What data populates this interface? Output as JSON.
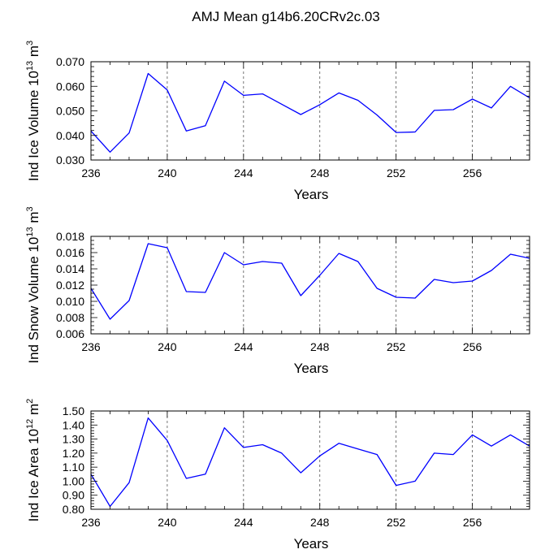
{
  "title": "AMJ Mean g14b6.20CRv2c.03",
  "line_color": "#0000ff",
  "chart_data": [
    {
      "type": "line",
      "ylabel": {
        "prefix": "Ind Ice Volume 10",
        "exp": "13",
        "mid": " m",
        "unit_exp": "3"
      },
      "xlabel": "Years",
      "xlim": [
        236,
        259
      ],
      "ylim": [
        0.03,
        0.07
      ],
      "xticks": [
        236,
        240,
        244,
        248,
        252,
        256
      ],
      "xtick_labels": [
        "236",
        "240",
        "244",
        "248",
        "252",
        "256"
      ],
      "yticks": [
        0.03,
        0.04,
        0.05,
        0.06,
        0.07
      ],
      "ytick_labels": [
        "0.030",
        "0.040",
        "0.050",
        "0.060",
        "0.070"
      ],
      "yminor_step": 0.002,
      "grid_x": [
        240,
        244,
        248,
        252,
        256
      ],
      "x": [
        236,
        237,
        238,
        239,
        240,
        241,
        242,
        243,
        244,
        245,
        246,
        247,
        248,
        249,
        250,
        251,
        252,
        253,
        254,
        255,
        256,
        257,
        258,
        259
      ],
      "values": [
        0.0418,
        0.0332,
        0.041,
        0.0652,
        0.0585,
        0.0418,
        0.044,
        0.0621,
        0.0563,
        0.0569,
        0.0527,
        0.0485,
        0.0525,
        0.0573,
        0.0543,
        0.0483,
        0.0412,
        0.0414,
        0.0502,
        0.0505,
        0.0548,
        0.0512,
        0.06,
        0.0553
      ]
    },
    {
      "type": "line",
      "ylabel": {
        "prefix": "Ind Snow Volume 10",
        "exp": "13",
        "mid": " m",
        "unit_exp": "3"
      },
      "xlabel": "Years",
      "xlim": [
        236,
        259
      ],
      "ylim": [
        0.006,
        0.018
      ],
      "xticks": [
        236,
        240,
        244,
        248,
        252,
        256
      ],
      "xtick_labels": [
        "236",
        "240",
        "244",
        "248",
        "252",
        "256"
      ],
      "yticks": [
        0.006,
        0.008,
        0.01,
        0.012,
        0.014,
        0.016,
        0.018
      ],
      "ytick_labels": [
        "0.006",
        "0.008",
        "0.010",
        "0.012",
        "0.014",
        "0.016",
        "0.018"
      ],
      "yminor_step": 0.0005,
      "grid_x": [
        240,
        244,
        248,
        252,
        256
      ],
      "x": [
        236,
        237,
        238,
        239,
        240,
        241,
        242,
        243,
        244,
        245,
        246,
        247,
        248,
        249,
        250,
        251,
        252,
        253,
        254,
        255,
        256,
        257,
        258,
        259
      ],
      "values": [
        0.0116,
        0.0078,
        0.0101,
        0.0171,
        0.0166,
        0.0112,
        0.0111,
        0.016,
        0.0145,
        0.0149,
        0.0147,
        0.0107,
        0.0132,
        0.0159,
        0.0149,
        0.0116,
        0.0105,
        0.0104,
        0.0127,
        0.0123,
        0.0125,
        0.0138,
        0.0158,
        0.0153
      ]
    },
    {
      "type": "line",
      "ylabel": {
        "prefix": "Ind Ice Area 10",
        "exp": "12",
        "mid": " m",
        "unit_exp": "2"
      },
      "xlabel": "Years",
      "xlim": [
        236,
        259
      ],
      "ylim": [
        0.8,
        1.5
      ],
      "xticks": [
        236,
        240,
        244,
        248,
        252,
        256
      ],
      "xtick_labels": [
        "236",
        "240",
        "244",
        "248",
        "252",
        "256"
      ],
      "yticks": [
        0.8,
        0.9,
        1.0,
        1.1,
        1.2,
        1.3,
        1.4,
        1.5
      ],
      "ytick_labels": [
        "0.80",
        "0.90",
        "1.00",
        "1.10",
        "1.20",
        "1.30",
        "1.40",
        "1.50"
      ],
      "yminor_step": 0.02,
      "grid_x": [
        240,
        244,
        248,
        252,
        256
      ],
      "x": [
        236,
        237,
        238,
        239,
        240,
        241,
        242,
        243,
        244,
        245,
        246,
        247,
        248,
        249,
        250,
        251,
        252,
        253,
        254,
        255,
        256,
        257,
        258,
        259
      ],
      "values": [
        1.05,
        0.82,
        0.99,
        1.45,
        1.29,
        1.02,
        1.05,
        1.38,
        1.24,
        1.26,
        1.2,
        1.06,
        1.18,
        1.27,
        1.23,
        1.19,
        0.97,
        1.0,
        1.2,
        1.19,
        1.33,
        1.25,
        1.33,
        1.25
      ]
    }
  ]
}
